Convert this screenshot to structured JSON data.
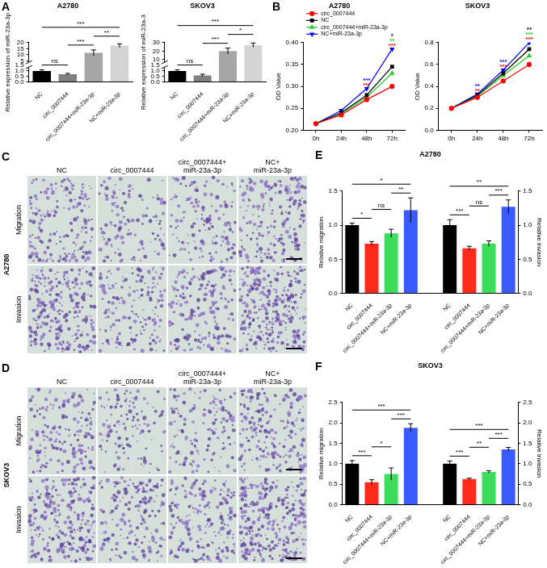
{
  "chart_data": [
    {
      "panel": "A",
      "type": "bar",
      "title": "A2780",
      "y_label": "Relative expression of miR-23a-3p",
      "categories": [
        "NC",
        "circ_0007444",
        "circ_0007444+miR-23a-3p",
        "NC+miR-23a-3p"
      ],
      "values": [
        1.0,
        0.7,
        11.5,
        17.5
      ],
      "errors": [
        0.1,
        0.08,
        2.5,
        1.5
      ],
      "colors": [
        "#000000",
        "#808080",
        "#a6a6a6",
        "#d4d4d4"
      ],
      "ylim": [
        0,
        20
      ],
      "ybreak": [
        1.5,
        2.5
      ],
      "yticks": [
        {
          "value": 0,
          "label": "0.0"
        },
        0.5,
        {
          "value": 1,
          "label": "1.0"
        },
        1.5,
        5,
        10,
        15,
        20
      ],
      "comparisons": [
        {
          "from": "NC",
          "to": "circ_0007444",
          "label": "ns"
        },
        {
          "from": "circ_0007444",
          "to": "circ_0007444+miR-23a-3p",
          "label": "***"
        },
        {
          "from": "circ_0007444+miR-23a-3p",
          "to": "NC+miR-23a-3p",
          "label": "**"
        },
        {
          "from": "NC",
          "to": "NC+miR-23a-3p",
          "label": "***"
        }
      ]
    },
    {
      "type": "bar",
      "title": "SKOV3",
      "y_label": "Relative expression of miR-23a-3",
      "categories": [
        "NC",
        "circ_0007444",
        "circ_0007444+miR-23a-3p",
        "NC+miR-23a-3p"
      ],
      "values": [
        1.0,
        0.6,
        20,
        27
      ],
      "errors": [
        0.1,
        0.1,
        3.5,
        2.5
      ],
      "colors": [
        "#000000",
        "#808080",
        "#a6a6a6",
        "#d4d4d4"
      ],
      "ylim": [
        0,
        30
      ],
      "ybreak": [
        1.5,
        5
      ],
      "yticks": [
        {
          "value": 0,
          "label": "0.0"
        },
        0.5,
        {
          "value": 1,
          "label": "1.0"
        },
        1.5,
        10,
        20,
        30
      ],
      "comparisons": [
        {
          "from": "NC",
          "to": "circ_0007444",
          "label": "ns"
        },
        {
          "from": "circ_0007444",
          "to": "circ_0007444+miR-23a-3p",
          "label": "***"
        },
        {
          "from": "circ_0007444+miR-23a-3p",
          "to": "NC+miR-23a-3p",
          "label": "*"
        },
        {
          "from": "NC",
          "to": "NC+miR-23a-3p",
          "label": "***"
        }
      ]
    },
    {
      "panel": "B",
      "type": "line",
      "title": "A2780",
      "y_label": "OD Value",
      "categories": [
        "0h",
        "24h",
        "48h",
        "72h"
      ],
      "series": [
        {
          "name": "circ_0007444",
          "color": "#ff0000",
          "marker": "circle",
          "values": [
            0.215,
            0.235,
            0.27,
            0.3
          ]
        },
        {
          "name": "NC",
          "color": "#000000",
          "marker": "square",
          "values": [
            0.215,
            0.24,
            0.28,
            0.345
          ]
        },
        {
          "name": "circ_0007444+miR-23a-3p",
          "color": "#22cc22",
          "marker": "triangle",
          "values": [
            0.215,
            0.238,
            0.275,
            0.33
          ]
        },
        {
          "name": "NC+miR-23a-3p",
          "color": "#0000ff",
          "marker": "triangle-down",
          "values": [
            0.215,
            0.245,
            0.295,
            0.385
          ]
        }
      ],
      "ylim": [
        0.2,
        0.4
      ],
      "yticks": [
        {
          "value": 0.2,
          "label": "0.20"
        },
        0.25,
        {
          "value": 0.3,
          "label": "0.30"
        },
        0.35,
        {
          "value": 0.4,
          "label": "0.40"
        }
      ],
      "legend": "upper left",
      "annotations": [
        {
          "x": "48h",
          "stars": [
            {
              "label": "***",
              "color": "#ff0000"
            },
            {
              "label": "***",
              "color": "#0000ff"
            }
          ]
        },
        {
          "x": "72h",
          "stars": [
            {
              "label": "***",
              "color": "#ff0000"
            },
            {
              "label": "**",
              "color": "#22cc22"
            },
            {
              "label": "*",
              "color": "#000000"
            }
          ]
        }
      ]
    },
    {
      "type": "line",
      "title": "SKOV3",
      "y_label": "OD Value",
      "categories": [
        "0h",
        "24h",
        "48h",
        "72h"
      ],
      "series": [
        {
          "name": "circ_0007444",
          "color": "#ff0000",
          "marker": "circle",
          "values": [
            0.2,
            0.3,
            0.45,
            0.6
          ]
        },
        {
          "name": "NC",
          "color": "#000000",
          "marker": "square",
          "values": [
            0.2,
            0.32,
            0.52,
            0.74
          ]
        },
        {
          "name": "circ_0007444+miR-23a-3p",
          "color": "#22cc22",
          "marker": "triangle",
          "values": [
            0.2,
            0.31,
            0.5,
            0.68
          ]
        },
        {
          "name": "NC+miR-23a-3p",
          "color": "#0000ff",
          "marker": "triangle-down",
          "values": [
            0.2,
            0.33,
            0.55,
            0.8
          ]
        }
      ],
      "ylim": [
        0,
        0.8
      ],
      "yticks": [
        {
          "value": 0,
          "label": "0.0"
        },
        0.2,
        0.4,
        0.6,
        0.8
      ],
      "annotations": [
        {
          "x": "24h",
          "stars": [
            {
              "label": "**",
              "color": "#ff0000"
            },
            {
              "label": "**",
              "color": "#0000ff"
            }
          ]
        },
        {
          "x": "48h",
          "stars": [
            {
              "label": "***",
              "color": "#ff0000"
            },
            {
              "label": "***",
              "color": "#0000ff"
            }
          ]
        },
        {
          "x": "72h",
          "stars": [
            {
              "label": "***",
              "color": "#ff0000"
            },
            {
              "label": "***",
              "color": "#22cc22"
            },
            {
              "label": "**",
              "color": "#000000"
            }
          ]
        }
      ]
    },
    {
      "panel": "E",
      "type": "bar",
      "title": "A2780",
      "categories": [
        "NC",
        "circ_0007444",
        "circ_0007444+miR-23a-3p",
        "NC+miR-23a-3p",
        null,
        "NC",
        "circ_0007444",
        "circ_0007444+miR-23a-3p",
        "NC+miR-23a-3p"
      ],
      "series": [
        {
          "name": "Relative migration",
          "values": [
            1.0,
            0.73,
            0.88,
            1.22,
            null,
            null,
            null,
            null,
            null
          ],
          "errors": [
            0.03,
            0.03,
            0.06,
            0.18,
            null,
            null,
            null,
            null,
            null
          ],
          "colors": [
            "#000000",
            "#ff2a1a",
            "#3ddc5a",
            "#3a5bff",
            null,
            null,
            null,
            null,
            null
          ],
          "comparisons": [
            {
              "from": "NC",
              "to": "circ_0007444",
              "label": "*"
            },
            {
              "from": "circ_0007444",
              "to": "circ_0007444+miR-23a-3p",
              "label": "ns"
            },
            {
              "from": "circ_0007444+miR-23a-3p",
              "to": "NC+miR-23a-3p",
              "label": "**"
            },
            {
              "from": "NC",
              "to": "NC+miR-23a-3p",
              "label": "*"
            }
          ]
        },
        {
          "name": "Relative invasion",
          "axis": "y2",
          "values": [
            null,
            null,
            null,
            null,
            null,
            1.0,
            0.66,
            0.73,
            1.27
          ],
          "errors": [
            null,
            null,
            null,
            null,
            null,
            0.08,
            0.03,
            0.04,
            0.1
          ],
          "colors": [
            null,
            null,
            null,
            null,
            null,
            "#000000",
            "#ff2a1a",
            "#3ddc5a",
            "#3a5bff"
          ],
          "comparisons": [
            {
              "from": "NC",
              "to": "circ_0007444",
              "label": "***"
            },
            {
              "from": "circ_0007444",
              "to": "circ_0007444+miR-23a-3p",
              "label": "ns"
            },
            {
              "from": "circ_0007444+miR-23a-3p",
              "to": "NC+miR-23a-3p",
              "label": "***"
            },
            {
              "from": "NC",
              "to": "NC+miR-23a-3p",
              "label": "**"
            }
          ]
        }
      ],
      "ylim": [
        0,
        1.5
      ],
      "yticks": [
        {
          "value": 0,
          "label": "0.0"
        },
        0.5,
        {
          "value": 1,
          "label": "1.0"
        },
        1.5
      ],
      "y2lim": [
        0,
        1.5
      ],
      "y2ticks": [
        {
          "value": 0,
          "label": "0.0"
        },
        0.5,
        {
          "value": 1,
          "label": "1.0"
        },
        1.5
      ]
    },
    {
      "panel": "F",
      "type": "bar",
      "title": "SKOV3",
      "categories": [
        "NC",
        "circ_0007444",
        "circ_0007444+miR-23a-3p",
        "NC+miR-23a-3p",
        null,
        "NC",
        "circ_0007444",
        "circ_0007444+miR-23a-3p",
        "NC+miR-23a-3p"
      ],
      "series": [
        {
          "name": "Relative migration",
          "values": [
            1.0,
            0.55,
            0.75,
            1.88,
            null,
            null,
            null,
            null,
            null
          ],
          "errors": [
            0.08,
            0.06,
            0.15,
            0.1,
            null,
            null,
            null,
            null,
            null
          ],
          "colors": [
            "#000000",
            "#ff2a1a",
            "#3ddc5a",
            "#3a5bff",
            null,
            null,
            null,
            null,
            null
          ],
          "comparisons": [
            {
              "from": "NC",
              "to": "circ_0007444",
              "label": "***"
            },
            {
              "from": "circ_0007444",
              "to": "circ_0007444+miR-23a-3p",
              "label": "*"
            },
            {
              "from": "circ_0007444+miR-23a-3p",
              "to": "NC+miR-23a-3p",
              "label": "***"
            },
            {
              "from": "NC",
              "to": "NC+miR-23a-3p",
              "label": "***"
            }
          ]
        },
        {
          "name": "Relative invasion",
          "axis": "y2",
          "values": [
            null,
            null,
            null,
            null,
            null,
            1.0,
            0.63,
            0.8,
            1.35
          ],
          "errors": [
            null,
            null,
            null,
            null,
            null,
            0.07,
            0.02,
            0.03,
            0.05
          ],
          "colors": [
            null,
            null,
            null,
            null,
            null,
            "#000000",
            "#ff2a1a",
            "#3ddc5a",
            "#3a5bff"
          ],
          "comparisons": [
            {
              "from": "NC",
              "to": "circ_0007444",
              "label": "***"
            },
            {
              "from": "circ_0007444",
              "to": "circ_0007444+miR-23a-3p",
              "label": "**"
            },
            {
              "from": "circ_0007444+miR-23a-3p",
              "to": "NC+miR-23a-3p",
              "label": "***"
            },
            {
              "from": "NC",
              "to": "NC+miR-23a-3p",
              "label": "***"
            }
          ]
        }
      ],
      "ylim": [
        0,
        2.5
      ],
      "yticks": [
        {
          "value": 0,
          "label": "0.0"
        },
        0.5,
        {
          "value": 1,
          "label": "1.0"
        },
        1.5,
        {
          "value": 2,
          "label": "2.0"
        },
        2.5
      ],
      "y2lim": [
        0,
        2.5
      ],
      "y2ticks": [
        {
          "value": 0,
          "label": "0.0"
        },
        0.5,
        {
          "value": 1,
          "label": "1.0"
        },
        1.5,
        {
          "value": 2,
          "label": "2.0"
        },
        2.5
      ]
    }
  ],
  "images": [
    {
      "panel": "C",
      "cell_line": "A2780",
      "columns": [
        [
          "NC"
        ],
        [
          "circ_0007444"
        ],
        [
          "circ_0007444+",
          "miR-23a-3p"
        ],
        [
          "NC+",
          "miR-23a-3p"
        ]
      ],
      "rows": [
        "Migration",
        "Invasion"
      ]
    },
    {
      "panel": "D",
      "cell_line": "SKOV3",
      "columns": [
        [
          "NC"
        ],
        [
          "circ_0007444"
        ],
        [
          "circ_0007444+",
          "miR-23a-3p"
        ],
        [
          "NC+",
          "miR-23a-3p"
        ]
      ],
      "rows": [
        "Migration",
        "Invasion"
      ]
    }
  ]
}
